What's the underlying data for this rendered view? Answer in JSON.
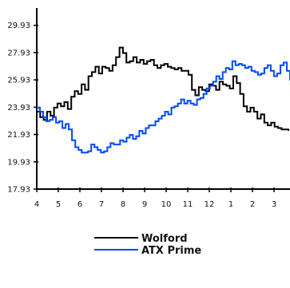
{
  "chart_data": {
    "type": "line",
    "title": "",
    "xlabel": "",
    "ylabel": "",
    "grid": false,
    "legend_position": "bottom-center",
    "x_ticks": [
      "4",
      "5",
      "6",
      "7",
      "8",
      "9",
      "10",
      "11",
      "12",
      "1",
      "2",
      "3"
    ],
    "y_ticks": [
      "17.93",
      "19.93",
      "21.93",
      "23.93",
      "25.93",
      "27.93",
      "29.93"
    ],
    "ylim": [
      17.93,
      31.2
    ],
    "series": [
      {
        "name": "Wolford",
        "color": "#000000",
        "values": [
          23.6,
          23.2,
          23.0,
          23.6,
          23.3,
          23.9,
          24.2,
          24.0,
          24.3,
          23.8,
          24.7,
          25.1,
          24.9,
          25.6,
          25.2,
          26.2,
          26.5,
          26.9,
          26.4,
          26.9,
          26.8,
          26.6,
          27.0,
          27.6,
          28.3,
          27.9,
          27.2,
          27.3,
          27.6,
          27.2,
          27.4,
          27.1,
          27.3,
          27.4,
          27.0,
          26.8,
          27.0,
          27.1,
          26.9,
          26.8,
          26.7,
          26.8,
          26.6,
          26.6,
          26.3,
          25.2,
          24.8,
          25.4,
          25.2,
          25.1,
          25.6,
          25.5,
          25.2,
          25.8,
          25.6,
          25.5,
          25.3,
          26.2,
          25.7,
          24.9,
          24.0,
          23.6,
          23.9,
          23.6,
          23.1,
          23.4,
          22.8,
          22.6,
          22.8,
          22.5,
          22.4,
          22.3,
          22.3,
          22.2
        ]
      },
      {
        "name": "ATX Prime",
        "color": "#0047ff",
        "values": [
          23.9,
          23.6,
          23.2,
          22.9,
          23.0,
          23.2,
          22.8,
          22.9,
          22.4,
          22.7,
          22.3,
          21.5,
          21.0,
          20.8,
          20.6,
          20.6,
          20.7,
          21.2,
          21.0,
          20.8,
          20.6,
          20.7,
          21.0,
          21.3,
          21.2,
          21.2,
          21.5,
          21.4,
          21.7,
          21.9,
          21.6,
          21.8,
          22.2,
          22.0,
          22.4,
          22.6,
          22.6,
          22.9,
          23.1,
          23.3,
          23.6,
          23.4,
          23.9,
          24.0,
          24.2,
          24.5,
          24.2,
          24.4,
          24.2,
          24.1,
          24.5,
          24.6,
          24.9,
          25.3,
          25.5,
          25.8,
          26.2,
          26.0,
          26.5,
          26.8,
          26.7,
          27.3,
          27.0,
          27.1,
          27.0,
          26.8,
          26.9,
          26.6,
          26.5,
          26.3,
          26.4,
          26.8,
          27.0,
          26.6,
          26.2,
          26.4,
          27.0,
          27.2,
          26.6,
          25.9
        ]
      }
    ]
  }
}
